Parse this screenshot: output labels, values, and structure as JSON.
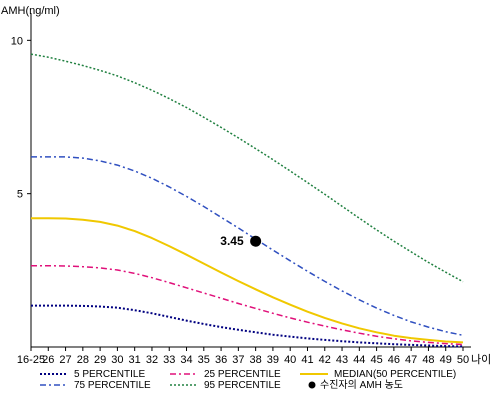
{
  "chart_data": {
    "type": "line",
    "ylabel": "AMH(ng/ml)",
    "xlabel": "나이",
    "ylim": [
      0,
      10.5
    ],
    "yticks": [
      5,
      10
    ],
    "x_ticks": [
      "16-25",
      "26",
      "27",
      "28",
      "29",
      "30",
      "31",
      "32",
      "33",
      "34",
      "35",
      "36",
      "37",
      "38",
      "39",
      "40",
      "41",
      "42",
      "43",
      "44",
      "45",
      "46",
      "47",
      "48",
      "49",
      "50"
    ],
    "series": [
      {
        "name": "5 PERCENTILE",
        "color": "#000080",
        "dash": "2,2",
        "width": 2,
        "values": [
          1.35,
          1.35,
          1.35,
          1.34,
          1.32,
          1.28,
          1.2,
          1.1,
          0.98,
          0.86,
          0.75,
          0.65,
          0.56,
          0.48,
          0.4,
          0.34,
          0.28,
          0.23,
          0.19,
          0.15,
          0.12,
          0.09,
          0.07,
          0.05,
          0.03,
          0.02
        ]
      },
      {
        "name": "25 PERCENTILE",
        "color": "#e0107a",
        "dash": "6,3,2,3",
        "width": 1.5,
        "values": [
          2.65,
          2.65,
          2.64,
          2.62,
          2.58,
          2.51,
          2.4,
          2.26,
          2.1,
          1.93,
          1.76,
          1.59,
          1.42,
          1.26,
          1.1,
          0.95,
          0.81,
          0.68,
          0.56,
          0.45,
          0.35,
          0.27,
          0.2,
          0.15,
          0.11,
          0.08
        ]
      },
      {
        "name": "MEDIAN(50 PERCENTILE)",
        "color": "#f0c800",
        "dash": "",
        "width": 2,
        "values": [
          4.2,
          4.2,
          4.19,
          4.15,
          4.08,
          3.96,
          3.78,
          3.55,
          3.29,
          3.01,
          2.72,
          2.43,
          2.15,
          1.88,
          1.62,
          1.38,
          1.15,
          0.95,
          0.77,
          0.61,
          0.48,
          0.37,
          0.29,
          0.23,
          0.18,
          0.15
        ]
      },
      {
        "name": "75 PERCENTILE",
        "color": "#3050c0",
        "dash": "6,3,2,3",
        "width": 1.5,
        "values": [
          6.2,
          6.2,
          6.2,
          6.16,
          6.07,
          5.93,
          5.74,
          5.5,
          5.22,
          4.91,
          4.58,
          4.23,
          3.88,
          3.52,
          3.16,
          2.81,
          2.47,
          2.14,
          1.83,
          1.54,
          1.27,
          1.03,
          0.82,
          0.65,
          0.5,
          0.38
        ]
      },
      {
        "name": "95 PERCENTILE",
        "color": "#208040",
        "dash": "2,2",
        "width": 1.5,
        "values": [
          9.55,
          9.45,
          9.32,
          9.18,
          9.02,
          8.84,
          8.62,
          8.37,
          8.1,
          7.81,
          7.49,
          7.16,
          6.82,
          6.47,
          6.11,
          5.74,
          5.36,
          4.98,
          4.59,
          4.2,
          3.82,
          3.45,
          3.1,
          2.76,
          2.44,
          2.13
        ]
      }
    ],
    "marker": {
      "name": "수진자의 AMH 농도",
      "x_label": "38",
      "value": 3.45,
      "label": "3.45"
    },
    "grid": false,
    "legend_position": "bottom"
  }
}
